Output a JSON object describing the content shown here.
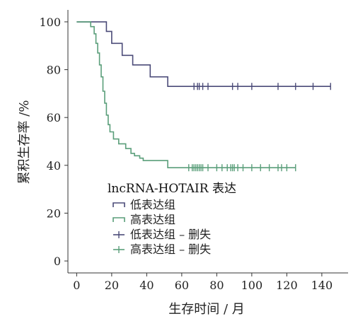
{
  "chart_data": {
    "type": "line",
    "title": "",
    "xlabel": "生存时间 / 月",
    "ylabel": "累积生存率 /%",
    "xlim": [
      -5,
      155
    ],
    "ylim": [
      -5,
      105
    ],
    "xticks": [
      "0",
      "20",
      "40",
      "60",
      "80",
      "100",
      "120",
      "140"
    ],
    "yticks": [
      "0",
      "20",
      "40",
      "60",
      "80",
      "100"
    ],
    "legend": {
      "title": "lncRNA-HOTAIR 表达",
      "placement": "lower-left",
      "entries": [
        "低表达组",
        "高表达组",
        "低表达组 – 删失",
        "高表达组 – 删失"
      ]
    },
    "series": [
      {
        "name": "低表达组",
        "color": "#4b4b78",
        "step_points": [
          [
            0,
            100
          ],
          [
            17,
            100
          ],
          [
            17,
            96
          ],
          [
            20,
            96
          ],
          [
            20,
            91
          ],
          [
            26,
            91
          ],
          [
            26,
            86
          ],
          [
            32,
            86
          ],
          [
            32,
            82
          ],
          [
            42,
            82
          ],
          [
            42,
            77
          ],
          [
            52,
            77
          ],
          [
            52,
            73
          ],
          [
            145,
            73
          ]
        ],
        "censored_x": [
          67,
          69,
          70,
          72,
          75,
          89,
          92,
          100,
          115,
          125,
          135,
          145
        ]
      },
      {
        "name": "高表达组",
        "color": "#5a9e7a",
        "step_points": [
          [
            0,
            100
          ],
          [
            8,
            100
          ],
          [
            8,
            98
          ],
          [
            10,
            98
          ],
          [
            10,
            95
          ],
          [
            11,
            95
          ],
          [
            11,
            91
          ],
          [
            12,
            91
          ],
          [
            12,
            87
          ],
          [
            13,
            87
          ],
          [
            13,
            82
          ],
          [
            14,
            82
          ],
          [
            14,
            77
          ],
          [
            15,
            77
          ],
          [
            15,
            71
          ],
          [
            16,
            71
          ],
          [
            16,
            66
          ],
          [
            17,
            66
          ],
          [
            17,
            61
          ],
          [
            18,
            61
          ],
          [
            18,
            57
          ],
          [
            19,
            57
          ],
          [
            19,
            54
          ],
          [
            21,
            54
          ],
          [
            21,
            51
          ],
          [
            24,
            51
          ],
          [
            24,
            49
          ],
          [
            28,
            49
          ],
          [
            28,
            47
          ],
          [
            31,
            47
          ],
          [
            31,
            45
          ],
          [
            33,
            45
          ],
          [
            33,
            44
          ],
          [
            36,
            44
          ],
          [
            36,
            43
          ],
          [
            38,
            43
          ],
          [
            38,
            42
          ],
          [
            52,
            42
          ],
          [
            52,
            39
          ],
          [
            125,
            39
          ]
        ],
        "censored_x": [
          64,
          66,
          67,
          68,
          69,
          70,
          71,
          72,
          75,
          80,
          83,
          86,
          88,
          89,
          90,
          92,
          95,
          100,
          105,
          110,
          115,
          117,
          120,
          125
        ]
      }
    ]
  }
}
